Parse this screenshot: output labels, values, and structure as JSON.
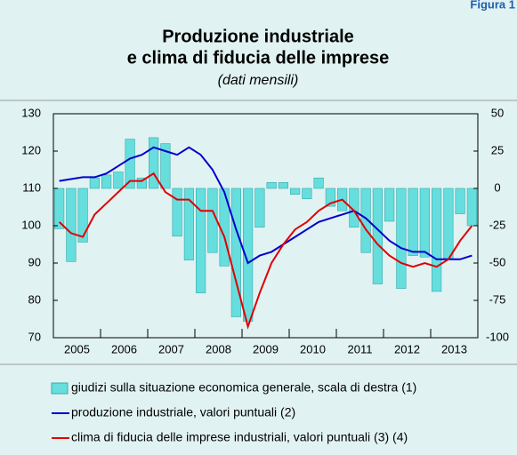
{
  "figure_label": "Figura 1",
  "chart_data": {
    "type": "bar_line",
    "title": "Produzione industriale",
    "title_line2": "e clima di fiducia delle imprese",
    "subtitle": "(dati mensili)",
    "xlim": [
      2005,
      2014
    ],
    "xticks": [
      2005,
      2006,
      2007,
      2008,
      2009,
      2010,
      2011,
      2012,
      2013,
      2014
    ],
    "year_labels": [
      "2005",
      "2006",
      "2007",
      "2008",
      "2009",
      "2010",
      "2011",
      "2012",
      "2013"
    ],
    "ylim": [
      70,
      130
    ],
    "yticks": [
      130,
      120,
      110,
      100,
      90,
      80,
      70
    ],
    "y2lim": [
      -100,
      50
    ],
    "y2ticks": [
      50,
      25,
      0,
      -25,
      -50,
      -75,
      -100
    ],
    "x": [
      2005.125,
      2005.375,
      2005.625,
      2005.875,
      2006.125,
      2006.375,
      2006.625,
      2006.875,
      2007.125,
      2007.375,
      2007.625,
      2007.875,
      2008.125,
      2008.375,
      2008.625,
      2008.875,
      2009.125,
      2009.375,
      2009.625,
      2009.875,
      2010.125,
      2010.375,
      2010.625,
      2010.875,
      2011.125,
      2011.375,
      2011.625,
      2011.875,
      2012.125,
      2012.375,
      2012.625,
      2012.875,
      2013.125,
      2013.375,
      2013.625,
      2013.875
    ],
    "series": [
      {
        "name": "giudizi sulla situazione economica generale, scala di destra (1)",
        "type": "bar",
        "axis": "y2",
        "color": "#66dede",
        "values": [
          -27,
          -49,
          -36,
          7,
          9,
          11,
          33,
          7,
          34,
          30,
          -32,
          -48,
          -70,
          -43,
          -52,
          -86,
          -89,
          -26,
          4,
          4,
          -4,
          -7,
          7,
          -12,
          -15,
          -26,
          -43,
          -64,
          -22,
          -67,
          -45,
          -46,
          -69,
          -47,
          -17,
          -25
        ]
      },
      {
        "name": "produzione industriale, valori puntuali (2)",
        "type": "line",
        "color": "#0000cc",
        "values": [
          112,
          112.5,
          113,
          113,
          114,
          116,
          118,
          119,
          121,
          120,
          119,
          121,
          119,
          115,
          109,
          99,
          90,
          92,
          93,
          95,
          97,
          99,
          101,
          102,
          103,
          104,
          102,
          99,
          96,
          94,
          93,
          93,
          91,
          91,
          91,
          92
        ]
      },
      {
        "name": "clima di fiducia delle imprese industriali, valori puntuali (3) (4)",
        "type": "line",
        "color": "#e00000",
        "values": [
          101,
          98,
          97,
          103,
          106,
          109,
          112,
          112,
          114,
          109,
          107,
          107,
          104,
          104,
          97,
          85,
          73,
          82,
          90,
          95,
          99,
          101,
          104,
          106,
          107,
          104,
          99,
          95,
          92,
          90,
          89,
          90,
          89,
          91,
          96,
          100
        ]
      }
    ]
  }
}
